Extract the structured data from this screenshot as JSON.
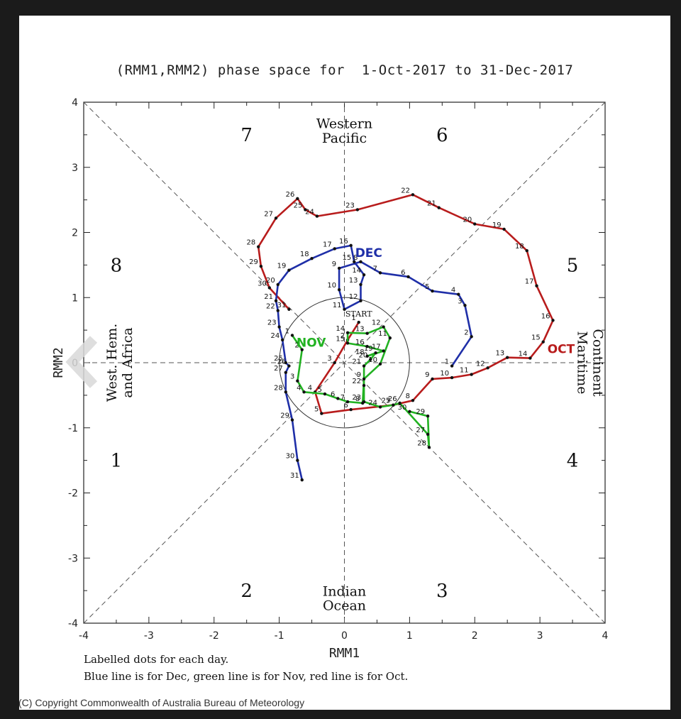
{
  "title": "(RMM1,RMM2) phase space for  1-Oct-2017 to 31-Dec-2017",
  "notes": {
    "line1": "Labelled dots for each day.",
    "line2": "Blue line is for Dec, green line is for Nov, red line is for Oct."
  },
  "copyright": "(C) Copyright Commonwealth of Australia Bureau of Meteorology",
  "chart_data": {
    "type": "line",
    "xlabel": "RMM1",
    "ylabel": "RMM2",
    "xlim": [
      -4,
      4
    ],
    "ylim": [
      -4,
      4
    ],
    "xticks": [
      "-4",
      "-3",
      "-2",
      "-1",
      "0",
      "1",
      "2",
      "3",
      "4"
    ],
    "yticks": [
      "-4",
      "-3",
      "-2",
      "-1",
      "0",
      "1",
      "2",
      "3",
      "4"
    ],
    "amplitude_circle_radius": 1,
    "grid": false,
    "phases": [
      {
        "label": "1",
        "x": -3.5,
        "y": -1.5
      },
      {
        "label": "2",
        "x": -1.5,
        "y": -3.5
      },
      {
        "label": "3",
        "x": 1.5,
        "y": -3.5
      },
      {
        "label": "4",
        "x": 3.5,
        "y": -1.5
      },
      {
        "label": "5",
        "x": 3.5,
        "y": 1.5
      },
      {
        "label": "6",
        "x": 1.5,
        "y": 3.5
      },
      {
        "label": "7",
        "x": -1.5,
        "y": 3.5
      },
      {
        "label": "8",
        "x": -3.5,
        "y": 1.5
      }
    ],
    "regions": {
      "top": [
        "Western",
        "Pacific"
      ],
      "bottom": [
        "Indian",
        "Ocean"
      ],
      "left": [
        "West. Hem.",
        "and Africa"
      ],
      "right": [
        "Maritime",
        "Continent"
      ]
    },
    "start_label": "START",
    "series": [
      {
        "name": "OCT",
        "color": "#b81c1c",
        "label_day": 15,
        "points": [
          {
            "d": 1,
            "x": 0.22,
            "y": 0.62
          },
          {
            "d": 2,
            "x": 0.05,
            "y": 0.35
          },
          {
            "d": 3,
            "x": -0.15,
            "y": 0.0
          },
          {
            "d": 4,
            "x": -0.45,
            "y": -0.45
          },
          {
            "d": 5,
            "x": -0.35,
            "y": -0.78
          },
          {
            "d": 6,
            "x": 0.1,
            "y": -0.72
          },
          {
            "d": 7,
            "x": 0.75,
            "y": -0.65
          },
          {
            "d": 8,
            "x": 1.05,
            "y": -0.58
          },
          {
            "d": 9,
            "x": 1.35,
            "y": -0.25
          },
          {
            "d": 10,
            "x": 1.65,
            "y": -0.23
          },
          {
            "d": 11,
            "x": 1.95,
            "y": -0.18
          },
          {
            "d": 12,
            "x": 2.2,
            "y": -0.08
          },
          {
            "d": 13,
            "x": 2.5,
            "y": 0.08
          },
          {
            "d": 14,
            "x": 2.85,
            "y": 0.07
          },
          {
            "d": 15,
            "x": 3.05,
            "y": 0.32
          },
          {
            "d": 16,
            "x": 3.2,
            "y": 0.65
          },
          {
            "d": 17,
            "x": 2.95,
            "y": 1.18
          },
          {
            "d": 18,
            "x": 2.8,
            "y": 1.72
          },
          {
            "d": 19,
            "x": 2.45,
            "y": 2.05
          },
          {
            "d": 20,
            "x": 2.0,
            "y": 2.13
          },
          {
            "d": 21,
            "x": 1.45,
            "y": 2.38
          },
          {
            "d": 22,
            "x": 1.05,
            "y": 2.58
          },
          {
            "d": 23,
            "x": 0.2,
            "y": 2.35
          },
          {
            "d": 24,
            "x": -0.42,
            "y": 2.25
          },
          {
            "d": 25,
            "x": -0.6,
            "y": 2.35
          },
          {
            "d": 26,
            "x": -0.72,
            "y": 2.52
          },
          {
            "d": 27,
            "x": -1.05,
            "y": 2.22
          },
          {
            "d": 28,
            "x": -1.32,
            "y": 1.78
          },
          {
            "d": 29,
            "x": -1.28,
            "y": 1.48
          },
          {
            "d": 30,
            "x": -1.15,
            "y": 1.15
          },
          {
            "d": 31,
            "x": -0.85,
            "y": 0.82
          }
        ]
      },
      {
        "name": "NOV",
        "color": "#22b222",
        "label_day": 1,
        "points": [
          {
            "d": 1,
            "x": -0.8,
            "y": 0.42
          },
          {
            "d": 2,
            "x": -0.65,
            "y": 0.2
          },
          {
            "d": 3,
            "x": -0.72,
            "y": -0.28
          },
          {
            "d": 4,
            "x": -0.62,
            "y": -0.45
          },
          {
            "d": 5,
            "x": -0.3,
            "y": -0.48
          },
          {
            "d": 6,
            "x": -0.1,
            "y": -0.55
          },
          {
            "d": 7,
            "x": 0.05,
            "y": -0.6
          },
          {
            "d": 8,
            "x": 0.28,
            "y": -0.62
          },
          {
            "d": 9,
            "x": 0.3,
            "y": -0.25
          },
          {
            "d": 10,
            "x": 0.55,
            "y": -0.02
          },
          {
            "d": 11,
            "x": 0.7,
            "y": 0.38
          },
          {
            "d": 12,
            "x": 0.6,
            "y": 0.55
          },
          {
            "d": 13,
            "x": 0.35,
            "y": 0.45
          },
          {
            "d": 14,
            "x": 0.05,
            "y": 0.46
          },
          {
            "d": 15,
            "x": 0.05,
            "y": 0.3
          },
          {
            "d": 16,
            "x": 0.35,
            "y": 0.25
          },
          {
            "d": 17,
            "x": 0.6,
            "y": 0.18
          },
          {
            "d": 18,
            "x": 0.35,
            "y": 0.1
          },
          {
            "d": 19,
            "x": 0.48,
            "y": 0.15
          },
          {
            "d": 20,
            "x": 0.4,
            "y": 0.05
          },
          {
            "d": 21,
            "x": 0.3,
            "y": -0.05
          },
          {
            "d": 22,
            "x": 0.3,
            "y": -0.35
          },
          {
            "d": 23,
            "x": 0.3,
            "y": -0.6
          },
          {
            "d": 24,
            "x": 0.55,
            "y": -0.68
          },
          {
            "d": 25,
            "x": 0.75,
            "y": -0.65
          },
          {
            "d": 26,
            "x": 0.85,
            "y": -0.62
          },
          {
            "d": 27,
            "x": 1.28,
            "y": -1.1
          },
          {
            "d": 28,
            "x": 1.3,
            "y": -1.3
          },
          {
            "d": 29,
            "x": 1.28,
            "y": -0.82
          },
          {
            "d": 30,
            "x": 1.0,
            "y": -0.75
          }
        ]
      },
      {
        "name": "DEC",
        "color": "#1f2fa8",
        "label_day": 16,
        "points": [
          {
            "d": 1,
            "x": 1.65,
            "y": -0.05
          },
          {
            "d": 2,
            "x": 1.95,
            "y": 0.4
          },
          {
            "d": 3,
            "x": 1.85,
            "y": 0.88
          },
          {
            "d": 4,
            "x": 1.75,
            "y": 1.05
          },
          {
            "d": 5,
            "x": 1.35,
            "y": 1.1
          },
          {
            "d": 6,
            "x": 0.98,
            "y": 1.32
          },
          {
            "d": 7,
            "x": 0.55,
            "y": 1.38
          },
          {
            "d": 8,
            "x": 0.25,
            "y": 1.55
          },
          {
            "d": 9,
            "x": -0.08,
            "y": 1.45
          },
          {
            "d": 10,
            "x": -0.08,
            "y": 1.12
          },
          {
            "d": 11,
            "x": 0.0,
            "y": 0.82
          },
          {
            "d": 12,
            "x": 0.25,
            "y": 0.95
          },
          {
            "d": 13,
            "x": 0.25,
            "y": 1.2
          },
          {
            "d": 14,
            "x": 0.3,
            "y": 1.35
          },
          {
            "d": 15,
            "x": 0.15,
            "y": 1.55
          },
          {
            "d": 16,
            "x": 0.1,
            "y": 1.8
          },
          {
            "d": 17,
            "x": -0.15,
            "y": 1.75
          },
          {
            "d": 18,
            "x": -0.5,
            "y": 1.6
          },
          {
            "d": 19,
            "x": -0.85,
            "y": 1.42
          },
          {
            "d": 20,
            "x": -1.02,
            "y": 1.2
          },
          {
            "d": 21,
            "x": -1.05,
            "y": 0.95
          },
          {
            "d": 22,
            "x": -1.02,
            "y": 0.8
          },
          {
            "d": 23,
            "x": -1.0,
            "y": 0.55
          },
          {
            "d": 24,
            "x": -0.95,
            "y": 0.35
          },
          {
            "d": 25,
            "x": -0.9,
            "y": 0.0
          },
          {
            "d": 26,
            "x": -0.85,
            "y": -0.05
          },
          {
            "d": 27,
            "x": -0.9,
            "y": -0.15
          },
          {
            "d": 28,
            "x": -0.9,
            "y": -0.45
          },
          {
            "d": 29,
            "x": -0.8,
            "y": -0.88
          },
          {
            "d": 30,
            "x": -0.72,
            "y": -1.5
          },
          {
            "d": 31,
            "x": -0.65,
            "y": -1.8
          }
        ]
      }
    ]
  }
}
